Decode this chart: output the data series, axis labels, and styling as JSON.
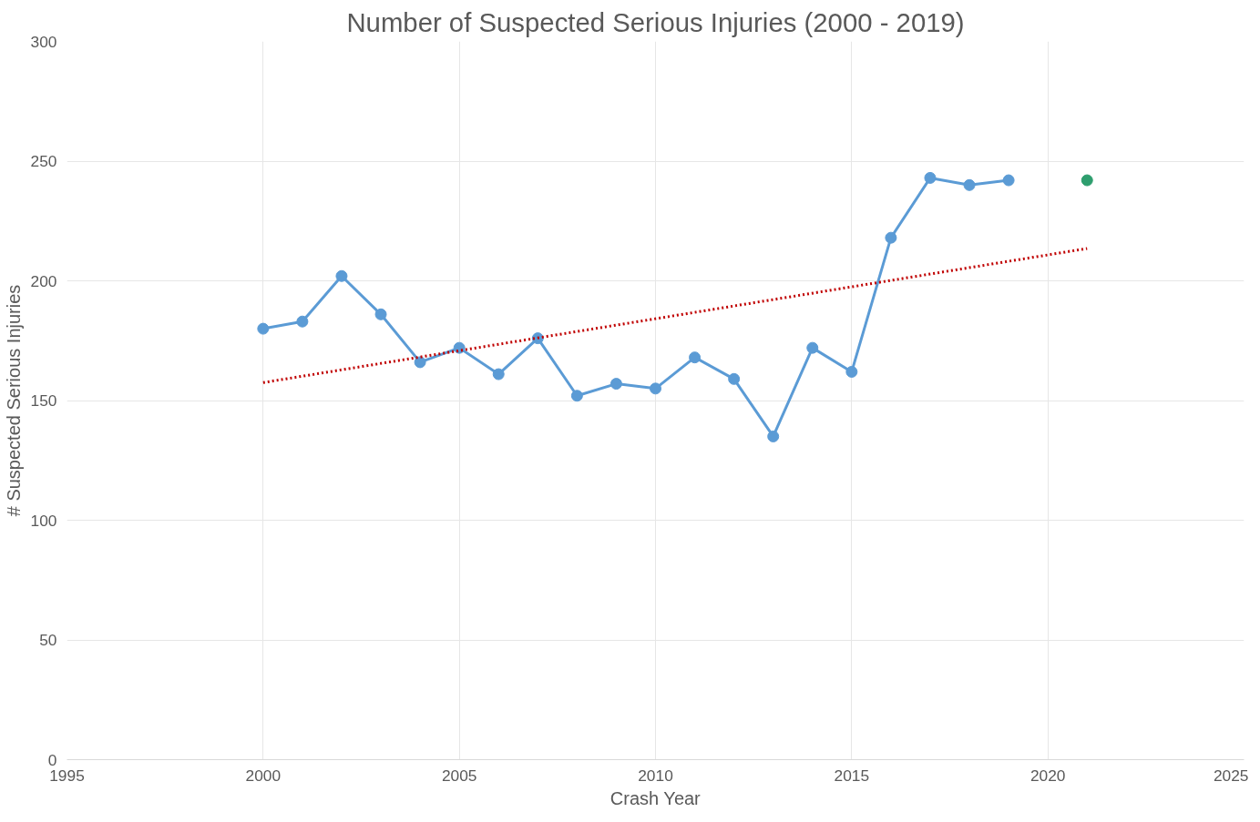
{
  "chart_data": {
    "type": "line",
    "title": "Number of Suspected Serious Injuries (2000 - 2019)",
    "xlabel": "Crash Year",
    "ylabel": "# Suspected Serious Injuries",
    "xlim": [
      1995,
      2025
    ],
    "xticks": [
      1995,
      2000,
      2005,
      2010,
      2015,
      2020,
      2025
    ],
    "ylim": [
      0,
      300
    ],
    "yticks": [
      0,
      50,
      100,
      150,
      200,
      250,
      300
    ],
    "grid": true,
    "marker": "circle",
    "line_style": "solid",
    "series": [
      {
        "color": "#5b9bd5",
        "x": [
          2000,
          2001,
          2002,
          2003,
          2004,
          2005,
          2006,
          2007,
          2008,
          2009,
          2010,
          2011,
          2012,
          2013,
          2014,
          2015,
          2016,
          2017,
          2018,
          2019
        ],
        "values": [
          180,
          183,
          202,
          186,
          166,
          172,
          161,
          176,
          152,
          157,
          155,
          168,
          159,
          135,
          172,
          162,
          218,
          243,
          240,
          242
        ]
      },
      {
        "type": "scatter",
        "color": "#2e9e6e",
        "x": [
          2021
        ],
        "values": [
          242
        ]
      },
      {
        "type": "line",
        "color": "#c00000",
        "line_style": "dotted",
        "marker": "none",
        "x": [
          2000,
          2021
        ],
        "values": [
          157.5,
          213.5
        ]
      }
    ]
  }
}
